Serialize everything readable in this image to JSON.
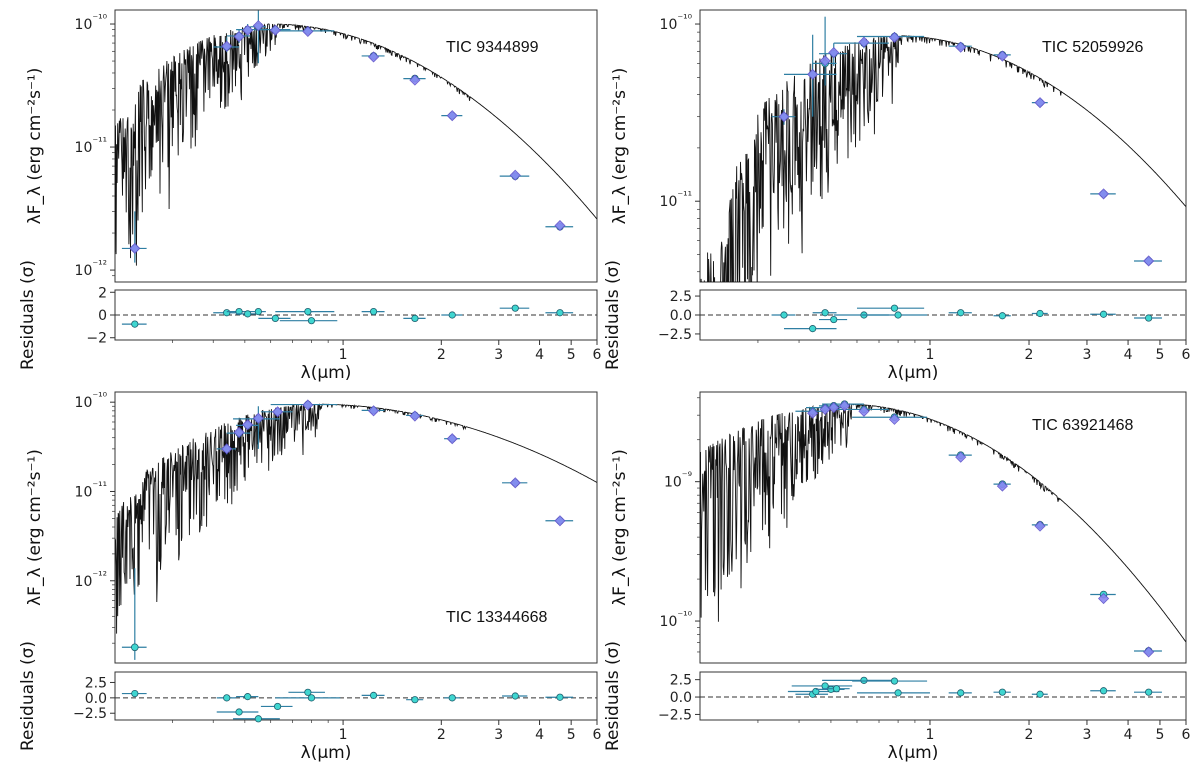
{
  "chart_data": [
    {
      "type": "scatter",
      "annotation": "TIC 9344899",
      "ylabel": "λF_λ (erg cm⁻²s⁻¹)",
      "resid_ylabel": "Residuals (σ)",
      "xlabel": "λ(μm)",
      "log_x": true,
      "log_y": true,
      "xlim": [
        0.2,
        6.0
      ],
      "ylim": [
        8e-13,
        1.3e-10
      ],
      "resid_ylim": [
        -2.2,
        2.2
      ],
      "y_ticks": [
        {
          "v": 1e-10,
          "label": "10⁻¹⁰"
        },
        {
          "v": 1e-11,
          "label": "10⁻¹¹"
        },
        {
          "v": 1e-12,
          "label": "10⁻¹²"
        }
      ],
      "resid_ticks": [
        {
          "v": 2,
          "label": "2"
        },
        {
          "v": 0,
          "label": "0"
        },
        {
          "v": -2,
          "label": "−2"
        }
      ],
      "x_ticks": [
        {
          "v": 1,
          "label": "1"
        },
        {
          "v": 2,
          "label": "2"
        },
        {
          "v": 3,
          "label": "3"
        },
        {
          "v": 4,
          "label": "4"
        },
        {
          "v": 5,
          "label": "5"
        },
        {
          "v": 6,
          "label": "6"
        }
      ],
      "model": {
        "peak": 0.6,
        "s_blue": 0.27,
        "s_red": 0.37,
        "amp": 1e-10,
        "cut": 0.24,
        "wave_scale": 0.75
      },
      "observed": [
        {
          "x": 0.23,
          "y": 1.5e-12,
          "xerr": 0.02,
          "yerr_lo": 3.5e-13,
          "yerr_hi": 1.5e-12
        },
        {
          "x": 0.44,
          "y": 6.5e-11,
          "xerr": 0.04,
          "yerr_lo": 6e-12,
          "yerr_hi": 1.3e-11
        },
        {
          "x": 0.48,
          "y": 8e-11,
          "xerr": 0.04,
          "yerr_lo": 1e-11,
          "yerr_hi": 1e-11
        },
        {
          "x": 0.51,
          "y": 9e-11,
          "xerr": 0.04,
          "yerr_lo": 1e-11,
          "yerr_hi": 1e-11
        },
        {
          "x": 0.55,
          "y": 9.5e-11,
          "xerr": 0.03,
          "yerr_lo": 4.7e-11,
          "yerr_hi": 4e-11
        },
        {
          "x": 0.62,
          "y": 9e-11,
          "xerr": 0.07,
          "yerr_lo": 5e-12,
          "yerr_hi": 5e-12
        },
        {
          "x": 0.78,
          "y": 8.8e-11,
          "xerr": 0.16,
          "yerr_lo": 5e-12,
          "yerr_hi": 5e-12
        },
        {
          "x": 1.24,
          "y": 5.5e-11,
          "xerr": 0.1,
          "yerr_lo": 3e-12,
          "yerr_hi": 3e-12
        },
        {
          "x": 1.66,
          "y": 3.6e-11,
          "xerr": 0.13,
          "yerr_lo": 2e-12,
          "yerr_hi": 2e-12
        },
        {
          "x": 2.16,
          "y": 1.8e-11,
          "xerr": 0.16,
          "yerr_lo": 1e-12,
          "yerr_hi": 1e-12
        },
        {
          "x": 3.37,
          "y": 5.8e-12,
          "xerr": 0.35,
          "yerr_lo": 3e-13,
          "yerr_hi": 3e-13
        },
        {
          "x": 4.62,
          "y": 2.25e-12,
          "xerr": 0.45,
          "yerr_lo": 1e-13,
          "yerr_hi": 1e-13
        }
      ],
      "synthetic": [
        {
          "x": 0.23,
          "y": 1.5e-12
        },
        {
          "x": 0.44,
          "y": 6.6e-11
        },
        {
          "x": 0.48,
          "y": 7.9e-11
        },
        {
          "x": 0.51,
          "y": 8.9e-11
        },
        {
          "x": 0.55,
          "y": 9.7e-11
        },
        {
          "x": 0.62,
          "y": 8.9e-11
        },
        {
          "x": 0.78,
          "y": 8.7e-11
        },
        {
          "x": 1.24,
          "y": 5.4e-11
        },
        {
          "x": 1.66,
          "y": 3.5e-11
        },
        {
          "x": 2.16,
          "y": 1.8e-11
        },
        {
          "x": 3.37,
          "y": 5.9e-12
        },
        {
          "x": 4.62,
          "y": 2.3e-12
        }
      ],
      "residuals": [
        {
          "x": 0.23,
          "y": -0.8,
          "xerr": 0.02
        },
        {
          "x": 0.44,
          "y": 0.2,
          "xerr": 0.04
        },
        {
          "x": 0.48,
          "y": 0.3,
          "xerr": 0.04
        },
        {
          "x": 0.51,
          "y": 0.1,
          "xerr": 0.04
        },
        {
          "x": 0.55,
          "y": 0.3,
          "xerr": 0.03
        },
        {
          "x": 0.62,
          "y": -0.3,
          "xerr": 0.07
        },
        {
          "x": 0.78,
          "y": 0.3,
          "xerr": 0.16
        },
        {
          "x": 0.8,
          "y": -0.5,
          "xerr": 0.16
        },
        {
          "x": 1.24,
          "y": 0.3,
          "xerr": 0.1
        },
        {
          "x": 1.66,
          "y": -0.3,
          "xerr": 0.13
        },
        {
          "x": 2.16,
          "y": 0.0,
          "xerr": 0.16
        },
        {
          "x": 3.37,
          "y": 0.6,
          "xerr": 0.35
        },
        {
          "x": 4.62,
          "y": 0.2,
          "xerr": 0.45
        }
      ]
    },
    {
      "type": "scatter",
      "annotation": "TIC 52059926",
      "ylabel": "λF_λ (erg cm⁻²s⁻¹)",
      "resid_ylabel": "Residuals (σ)",
      "xlabel": "λ(μm)",
      "log_x": true,
      "log_y": true,
      "xlim": [
        0.2,
        6.0
      ],
      "ylim": [
        3.5e-12,
        1.2e-10
      ],
      "resid_ylim": [
        -3.3,
        3.3
      ],
      "y_ticks": [
        {
          "v": 1e-10,
          "label": "10⁻¹⁰"
        },
        {
          "v": 1e-11,
          "label": "10⁻¹¹"
        }
      ],
      "resid_ticks": [
        {
          "v": 2.5,
          "label": "2.5"
        },
        {
          "v": 0,
          "label": "0.0"
        },
        {
          "v": -2.5,
          "label": "−2.5"
        }
      ],
      "x_ticks": [
        {
          "v": 1,
          "label": "1"
        },
        {
          "v": 2,
          "label": "2"
        },
        {
          "v": 3,
          "label": "3"
        },
        {
          "v": 4,
          "label": "4"
        },
        {
          "v": 5,
          "label": "5"
        },
        {
          "v": 6,
          "label": "6"
        }
      ],
      "model": {
        "peak": 0.78,
        "s_blue": 0.3,
        "s_red": 0.42,
        "amp": 8.6e-11,
        "cut": 0.3,
        "wave_scale": 0.8
      },
      "observed": [
        {
          "x": 0.36,
          "y": 3e-11,
          "xerr": 0.03,
          "yerr_lo": 3e-12,
          "yerr_hi": 3e-12
        },
        {
          "x": 0.44,
          "y": 5.2e-11,
          "xerr": 0.08,
          "yerr_lo": 2.2e-11,
          "yerr_hi": 3.5e-11
        },
        {
          "x": 0.48,
          "y": 6e-11,
          "xerr": 0.04,
          "yerr_lo": 1.5e-11,
          "yerr_hi": 5e-11
        },
        {
          "x": 0.51,
          "y": 6.8e-11,
          "xerr": 0.05,
          "yerr_lo": 1e-11,
          "yerr_hi": 1e-11
        },
        {
          "x": 0.63,
          "y": 7.8e-11,
          "xerr": 0.12,
          "yerr_lo": 5e-12,
          "yerr_hi": 5e-12
        },
        {
          "x": 0.78,
          "y": 8.5e-11,
          "xerr": 0.18,
          "yerr_lo": 5e-12,
          "yerr_hi": 5e-12
        },
        {
          "x": 1.24,
          "y": 7.5e-11,
          "xerr": 0.1,
          "yerr_lo": 4e-12,
          "yerr_hi": 4e-12
        },
        {
          "x": 1.66,
          "y": 6.7e-11,
          "xerr": 0.1,
          "yerr_lo": 3e-12,
          "yerr_hi": 3e-12
        },
        {
          "x": 2.16,
          "y": 3.6e-11,
          "xerr": 0.12,
          "yerr_lo": 2e-12,
          "yerr_hi": 2e-12
        },
        {
          "x": 3.37,
          "y": 1.1e-11,
          "xerr": 0.3,
          "yerr_lo": 5e-13,
          "yerr_hi": 5e-13
        },
        {
          "x": 4.62,
          "y": 4.6e-12,
          "xerr": 0.45,
          "yerr_lo": 2e-13,
          "yerr_hi": 2e-13
        }
      ],
      "synthetic": [
        {
          "x": 0.36,
          "y": 3e-11
        },
        {
          "x": 0.44,
          "y": 5.2e-11
        },
        {
          "x": 0.48,
          "y": 6.2e-11
        },
        {
          "x": 0.51,
          "y": 6.9e-11
        },
        {
          "x": 0.63,
          "y": 7.9e-11
        },
        {
          "x": 0.78,
          "y": 8.4e-11
        },
        {
          "x": 1.24,
          "y": 7.4e-11
        },
        {
          "x": 1.66,
          "y": 6.6e-11
        },
        {
          "x": 2.16,
          "y": 3.6e-11
        },
        {
          "x": 3.37,
          "y": 1.1e-11
        },
        {
          "x": 4.62,
          "y": 4.6e-12
        }
      ],
      "residuals": [
        {
          "x": 0.36,
          "y": 0.0,
          "xerr": 0.03
        },
        {
          "x": 0.44,
          "y": -1.8,
          "xerr": 0.08
        },
        {
          "x": 0.48,
          "y": 0.3,
          "xerr": 0.04
        },
        {
          "x": 0.51,
          "y": -0.6,
          "xerr": 0.05
        },
        {
          "x": 0.63,
          "y": 0.0,
          "xerr": 0.12
        },
        {
          "x": 0.78,
          "y": 0.9,
          "xerr": 0.18
        },
        {
          "x": 0.8,
          "y": 0.0,
          "xerr": 0.18
        },
        {
          "x": 1.24,
          "y": 0.3,
          "xerr": 0.1
        },
        {
          "x": 1.66,
          "y": -0.1,
          "xerr": 0.1
        },
        {
          "x": 2.16,
          "y": 0.2,
          "xerr": 0.12
        },
        {
          "x": 3.37,
          "y": 0.1,
          "xerr": 0.3
        },
        {
          "x": 4.62,
          "y": -0.4,
          "xerr": 0.45
        }
      ]
    },
    {
      "type": "scatter",
      "annotation": "TIC 13344668",
      "ylabel": "λF_λ (erg cm⁻²s⁻¹)",
      "resid_ylabel": "Residuals (σ)",
      "xlabel": "λ(μm)",
      "log_x": true,
      "log_y": true,
      "xlim": [
        0.2,
        6.0
      ],
      "ylim": [
        1.2e-13,
        1.3e-10
      ],
      "resid_ylim": [
        -3.6,
        4.2
      ],
      "y_ticks": [
        {
          "v": 1e-10,
          "label": "10⁻¹⁰"
        },
        {
          "v": 1e-11,
          "label": "10⁻¹¹"
        },
        {
          "v": 1e-12,
          "label": "10⁻¹²"
        }
      ],
      "resid_ticks": [
        {
          "v": 2.5,
          "label": "2.5"
        },
        {
          "v": 0,
          "label": "0.0"
        },
        {
          "v": -2.5,
          "label": "−2.5"
        }
      ],
      "x_ticks": [
        {
          "v": 1,
          "label": "1"
        },
        {
          "v": 2,
          "label": "2"
        },
        {
          "v": 3,
          "label": "3"
        },
        {
          "v": 4,
          "label": "4"
        },
        {
          "v": 5,
          "label": "5"
        },
        {
          "v": 6,
          "label": "6"
        }
      ],
      "model": {
        "peak": 0.82,
        "s_blue": 0.28,
        "s_red": 0.43,
        "amp": 9.5e-11,
        "cut": 0.25,
        "wave_scale": 0.7
      },
      "observed": [
        {
          "x": 0.23,
          "y": 1.8e-13,
          "xerr": 0.02,
          "yerr_lo": 5e-14,
          "yerr_hi": 1.2e-12
        },
        {
          "x": 0.44,
          "y": 3e-11,
          "xerr": 0.03,
          "yerr_lo": 4e-12,
          "yerr_hi": 4e-12
        },
        {
          "x": 0.48,
          "y": 4.5e-11,
          "xerr": 0.04,
          "yerr_lo": 5e-12,
          "yerr_hi": 5e-12
        },
        {
          "x": 0.51,
          "y": 5.5e-11,
          "xerr": 0.04,
          "yerr_lo": 5e-12,
          "yerr_hi": 5e-12
        },
        {
          "x": 0.55,
          "y": 6.5e-11,
          "xerr": 0.09,
          "yerr_lo": 3.5e-11,
          "yerr_hi": 2.5e-11
        },
        {
          "x": 0.63,
          "y": 7.8e-11,
          "xerr": 0.07,
          "yerr_lo": 5e-12,
          "yerr_hi": 5e-12
        },
        {
          "x": 0.78,
          "y": 9.4e-11,
          "xerr": 0.18,
          "yerr_lo": 5e-12,
          "yerr_hi": 5e-12
        },
        {
          "x": 1.24,
          "y": 8.1e-11,
          "xerr": 0.1,
          "yerr_lo": 4e-12,
          "yerr_hi": 4e-12
        },
        {
          "x": 1.66,
          "y": 7.1e-11,
          "xerr": 0.1,
          "yerr_lo": 3e-12,
          "yerr_hi": 3e-12
        },
        {
          "x": 2.16,
          "y": 3.9e-11,
          "xerr": 0.12,
          "yerr_lo": 2e-12,
          "yerr_hi": 2e-12
        },
        {
          "x": 3.37,
          "y": 1.25e-11,
          "xerr": 0.3,
          "yerr_lo": 5e-13,
          "yerr_hi": 5e-13
        },
        {
          "x": 4.62,
          "y": 4.7e-12,
          "xerr": 0.45,
          "yerr_lo": 2e-13,
          "yerr_hi": 2e-13
        }
      ],
      "synthetic": [
        {
          "x": 0.44,
          "y": 3e-11
        },
        {
          "x": 0.48,
          "y": 4.6e-11
        },
        {
          "x": 0.51,
          "y": 5.6e-11
        },
        {
          "x": 0.55,
          "y": 6.6e-11
        },
        {
          "x": 0.63,
          "y": 7.8e-11
        },
        {
          "x": 0.78,
          "y": 9.3e-11
        },
        {
          "x": 1.24,
          "y": 8e-11
        },
        {
          "x": 1.66,
          "y": 7e-11
        },
        {
          "x": 2.16,
          "y": 3.9e-11
        },
        {
          "x": 3.37,
          "y": 1.25e-11
        },
        {
          "x": 4.62,
          "y": 4.7e-12
        }
      ],
      "residuals": [
        {
          "x": 0.23,
          "y": 0.7,
          "xerr": 0.02
        },
        {
          "x": 0.44,
          "y": 0.0,
          "xerr": 0.03
        },
        {
          "x": 0.48,
          "y": -2.3,
          "xerr": 0.07
        },
        {
          "x": 0.51,
          "y": 0.2,
          "xerr": 0.04
        },
        {
          "x": 0.55,
          "y": -3.4,
          "xerr": 0.09
        },
        {
          "x": 0.63,
          "y": -1.4,
          "xerr": 0.07
        },
        {
          "x": 0.78,
          "y": 0.9,
          "xerr": 0.1
        },
        {
          "x": 0.8,
          "y": 0.0,
          "xerr": 0.18
        },
        {
          "x": 1.24,
          "y": 0.4,
          "xerr": 0.1
        },
        {
          "x": 1.66,
          "y": -0.3,
          "xerr": 0.1
        },
        {
          "x": 2.16,
          "y": 0.0,
          "xerr": 0.12
        },
        {
          "x": 3.37,
          "y": 0.3,
          "xerr": 0.3
        },
        {
          "x": 4.62,
          "y": 0.1,
          "xerr": 0.45
        }
      ]
    },
    {
      "type": "scatter",
      "annotation": "TIC 63921468",
      "ylabel": "λF_λ (erg cm⁻²s⁻¹)",
      "resid_ylabel": "Residuals (σ)",
      "xlabel": "λ(μm)",
      "log_x": true,
      "log_y": true,
      "xlim": [
        0.2,
        6.0
      ],
      "ylim": [
        5e-11,
        4.4e-09
      ],
      "resid_ylim": [
        -3.3,
        3.6
      ],
      "y_ticks": [
        {
          "v": 1e-09,
          "label": "10⁻⁹"
        },
        {
          "v": 1e-10,
          "label": "10⁻¹⁰"
        }
      ],
      "resid_ticks": [
        {
          "v": 2.5,
          "label": "2.5"
        },
        {
          "v": 0,
          "label": "0.0"
        },
        {
          "v": -2.5,
          "label": "−2.5"
        }
      ],
      "x_ticks": [
        {
          "v": 1,
          "label": "1"
        },
        {
          "v": 2,
          "label": "2"
        },
        {
          "v": 3,
          "label": "3"
        },
        {
          "v": 4,
          "label": "4"
        },
        {
          "v": 5,
          "label": "5"
        },
        {
          "v": 6,
          "label": "6"
        }
      ],
      "model": {
        "peak": 0.55,
        "s_blue": 0.35,
        "s_red": 0.37,
        "amp": 3.6e-09,
        "cut": 0.2,
        "wave_scale": 0.4
      },
      "observed": [
        {
          "x": 0.44,
          "y": 3.2e-09,
          "xerr": 0.05,
          "yerr_lo": 1e-10,
          "yerr_hi": 1e-10
        },
        {
          "x": 0.48,
          "y": 3.4e-09,
          "xerr": 0.06,
          "yerr_lo": 1e-10,
          "yerr_hi": 1e-10
        },
        {
          "x": 0.51,
          "y": 3.5e-09,
          "xerr": 0.05,
          "yerr_lo": 1e-10,
          "yerr_hi": 1e-10
        },
        {
          "x": 0.55,
          "y": 3.6e-09,
          "xerr": 0.08,
          "yerr_lo": 1e-10,
          "yerr_hi": 1e-10
        },
        {
          "x": 0.63,
          "y": 3.3e-09,
          "xerr": 0.12,
          "yerr_lo": 1e-10,
          "yerr_hi": 1e-10
        },
        {
          "x": 0.78,
          "y": 2.9e-09,
          "xerr": 0.2,
          "yerr_lo": 1e-10,
          "yerr_hi": 1e-10
        },
        {
          "x": 1.24,
          "y": 1.55e-09,
          "xerr": 0.1,
          "yerr_lo": 5e-11,
          "yerr_hi": 5e-11
        },
        {
          "x": 1.66,
          "y": 9.6e-10,
          "xerr": 0.1,
          "yerr_lo": 3e-11,
          "yerr_hi": 3e-11
        },
        {
          "x": 2.16,
          "y": 4.9e-10,
          "xerr": 0.12,
          "yerr_lo": 2e-11,
          "yerr_hi": 2e-11
        },
        {
          "x": 3.37,
          "y": 1.55e-10,
          "xerr": 0.3,
          "yerr_lo": 5e-12,
          "yerr_hi": 5e-12
        },
        {
          "x": 4.62,
          "y": 6.1e-11,
          "xerr": 0.45,
          "yerr_lo": 2e-12,
          "yerr_hi": 2e-12
        }
      ],
      "synthetic": [
        {
          "x": 0.44,
          "y": 3.1e-09
        },
        {
          "x": 0.48,
          "y": 3.3e-09
        },
        {
          "x": 0.51,
          "y": 3.4e-09
        },
        {
          "x": 0.55,
          "y": 3.5e-09
        },
        {
          "x": 0.63,
          "y": 3.2e-09
        },
        {
          "x": 0.78,
          "y": 2.8e-09
        },
        {
          "x": 1.24,
          "y": 1.5e-09
        },
        {
          "x": 1.66,
          "y": 9.3e-10
        },
        {
          "x": 2.16,
          "y": 4.8e-10
        },
        {
          "x": 3.37,
          "y": 1.45e-10
        },
        {
          "x": 4.62,
          "y": 6e-11
        }
      ],
      "residuals": [
        {
          "x": 0.44,
          "y": 0.4,
          "xerr": 0.05
        },
        {
          "x": 0.45,
          "y": 0.8,
          "xerr": 0.08
        },
        {
          "x": 0.48,
          "y": 1.6,
          "xerr": 0.1
        },
        {
          "x": 0.5,
          "y": 1.1,
          "xerr": 0.05
        },
        {
          "x": 0.52,
          "y": 1.2,
          "xerr": 0.05
        },
        {
          "x": 0.63,
          "y": 2.4,
          "xerr": 0.16
        },
        {
          "x": 0.78,
          "y": 2.3,
          "xerr": 0.2
        },
        {
          "x": 0.8,
          "y": 0.6,
          "xerr": 0.2
        },
        {
          "x": 1.24,
          "y": 0.6,
          "xerr": 0.1
        },
        {
          "x": 1.66,
          "y": 0.7,
          "xerr": 0.1
        },
        {
          "x": 2.16,
          "y": 0.4,
          "xerr": 0.12
        },
        {
          "x": 3.37,
          "y": 0.9,
          "xerr": 0.3
        },
        {
          "x": 4.62,
          "y": 0.7,
          "xerr": 0.45
        }
      ]
    }
  ]
}
